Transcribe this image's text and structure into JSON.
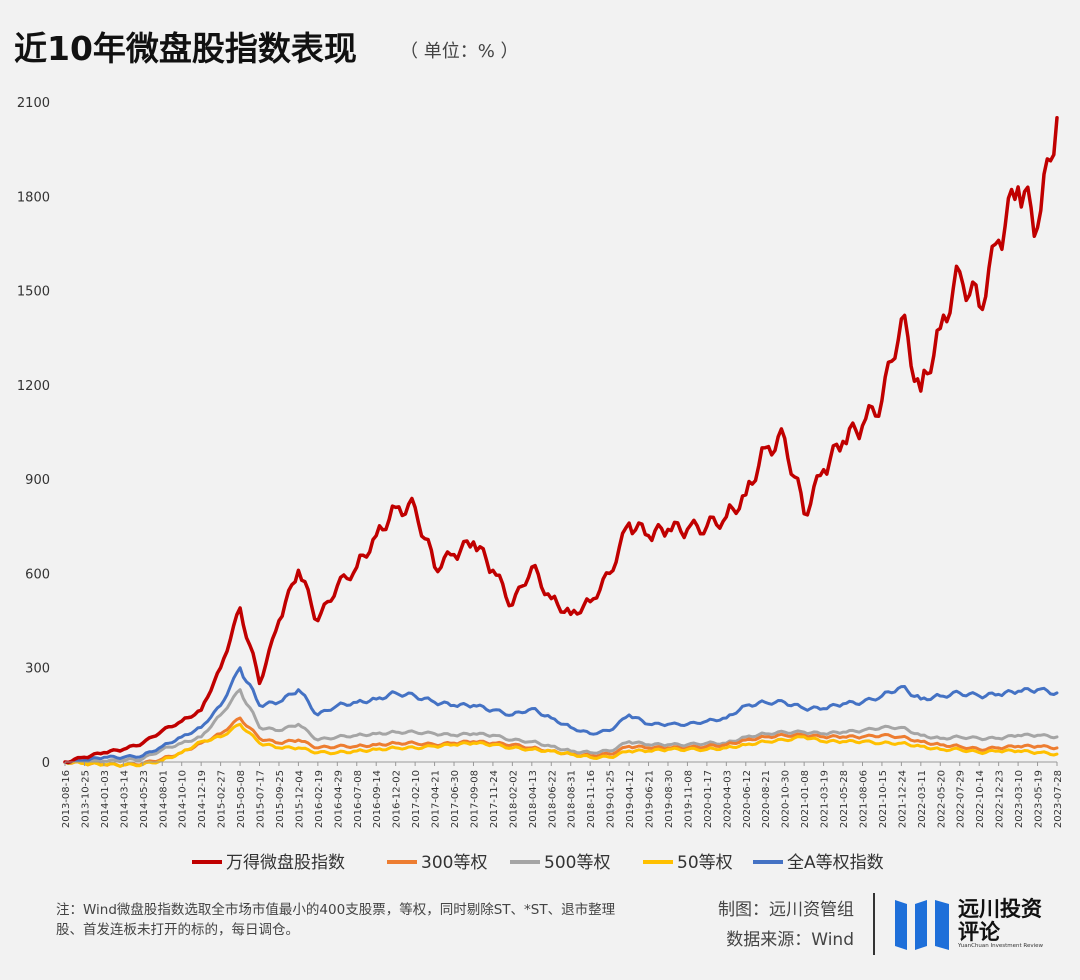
{
  "header": {
    "title": "近10年微盘股指数表现",
    "unit": "（ 单位：% ）"
  },
  "colors": {
    "micro": "#c00000",
    "csi300": "#ed7d31",
    "csi500": "#a5a5a5",
    "sse50": "#ffc000",
    "alla": "#4472c4",
    "background": "#f2f2f2"
  },
  "chart_data": {
    "type": "line",
    "title": "近10年微盘股指数表现",
    "ylabel": "单位：%",
    "ylim": [
      0,
      2100
    ],
    "yticks": [
      "0",
      "300",
      "600",
      "900",
      "1200",
      "1500",
      "1800",
      "2100"
    ],
    "categories": [
      "2013-08-16",
      "2013-10-25",
      "2014-01-03",
      "2014-03-14",
      "2014-05-23",
      "2014-08-01",
      "2014-10-10",
      "2014-12-19",
      "2015-02-27",
      "2015-05-08",
      "2015-07-17",
      "2015-09-25",
      "2015-12-04",
      "2016-02-19",
      "2016-04-29",
      "2016-07-08",
      "2016-09-14",
      "2016-12-02",
      "2017-02-10",
      "2017-04-21",
      "2017-06-30",
      "2017-09-08",
      "2017-11-24",
      "2018-02-02",
      "2018-04-13",
      "2018-06-22",
      "2018-08-31",
      "2018-11-16",
      "2019-01-25",
      "2019-04-12",
      "2019-06-21",
      "2019-08-30",
      "2019-11-08",
      "2020-01-17",
      "2020-04-03",
      "2020-06-12",
      "2020-08-21",
      "2020-10-30",
      "2021-01-08",
      "2021-03-19",
      "2021-05-28",
      "2021-08-06",
      "2021-10-15",
      "2021-12-24",
      "2022-03-11",
      "2022-05-20",
      "2022-07-29",
      "2022-10-14",
      "2022-12-23",
      "2023-03-10",
      "2023-05-19",
      "2023-07-28"
    ],
    "series": [
      {
        "name": "万得微盘股指数",
        "color": "#c00000",
        "values": [
          0,
          15,
          30,
          40,
          60,
          100,
          130,
          165,
          300,
          490,
          250,
          450,
          610,
          450,
          560,
          620,
          720,
          810,
          810,
          620,
          660,
          700,
          610,
          500,
          620,
          520,
          470,
          510,
          600,
          760,
          720,
          740,
          740,
          750,
          780,
          850,
          1000,
          1030,
          790,
          930,
          1020,
          1070,
          1150,
          1410,
          1180,
          1380,
          1560,
          1450,
          1660,
          1830,
          1700,
          2050
        ]
      },
      {
        "name": "300等权",
        "color": "#ed7d31",
        "values": [
          0,
          -5,
          -8,
          -10,
          -5,
          10,
          30,
          60,
          90,
          140,
          75,
          60,
          70,
          45,
          50,
          50,
          55,
          60,
          60,
          55,
          60,
          65,
          60,
          55,
          45,
          35,
          25,
          20,
          25,
          50,
          45,
          45,
          45,
          50,
          55,
          70,
          80,
          85,
          85,
          80,
          80,
          80,
          85,
          80,
          65,
          55,
          50,
          40,
          45,
          50,
          50,
          45
        ]
      },
      {
        "name": "500等权",
        "color": "#a5a5a5",
        "values": [
          0,
          0,
          3,
          5,
          10,
          40,
          60,
          80,
          150,
          230,
          110,
          100,
          120,
          70,
          80,
          85,
          90,
          95,
          95,
          90,
          85,
          90,
          85,
          70,
          65,
          50,
          35,
          30,
          35,
          65,
          55,
          55,
          55,
          60,
          60,
          80,
          90,
          95,
          95,
          90,
          95,
          100,
          110,
          110,
          85,
          75,
          80,
          75,
          75,
          85,
          85,
          80
        ]
      },
      {
        "name": "50等权",
        "color": "#ffc000",
        "values": [
          0,
          -5,
          -8,
          -10,
          -8,
          5,
          30,
          65,
          80,
          120,
          60,
          45,
          45,
          30,
          30,
          35,
          40,
          45,
          45,
          50,
          55,
          60,
          55,
          45,
          40,
          35,
          25,
          15,
          15,
          35,
          35,
          40,
          40,
          40,
          45,
          55,
          65,
          70,
          80,
          65,
          65,
          65,
          60,
          60,
          50,
          40,
          40,
          30,
          35,
          35,
          30,
          25
        ]
      },
      {
        "name": "全A等权指数",
        "color": "#4472c4",
        "values": [
          0,
          5,
          15,
          15,
          20,
          50,
          80,
          110,
          180,
          300,
          180,
          190,
          230,
          150,
          180,
          190,
          200,
          220,
          210,
          190,
          180,
          180,
          165,
          150,
          170,
          140,
          110,
          90,
          100,
          150,
          120,
          120,
          120,
          130,
          140,
          180,
          190,
          190,
          170,
          170,
          185,
          190,
          210,
          240,
          200,
          210,
          220,
          210,
          215,
          225,
          230,
          220
        ]
      }
    ]
  },
  "footer": {
    "note": "注：Wind微盘股指数选取全市场市值最小的400支股票，等权，同时剔除ST、*ST、退市整理股、首发连板未打开的标的，每日调仓。",
    "made_by": "制图：远川资管组",
    "source": "数据来源：Wind",
    "logo_name": "远川投资评论",
    "logo_sub": "YuanChuan Investment Review",
    "logo_icon": "yuanchuan-logo-icon"
  }
}
